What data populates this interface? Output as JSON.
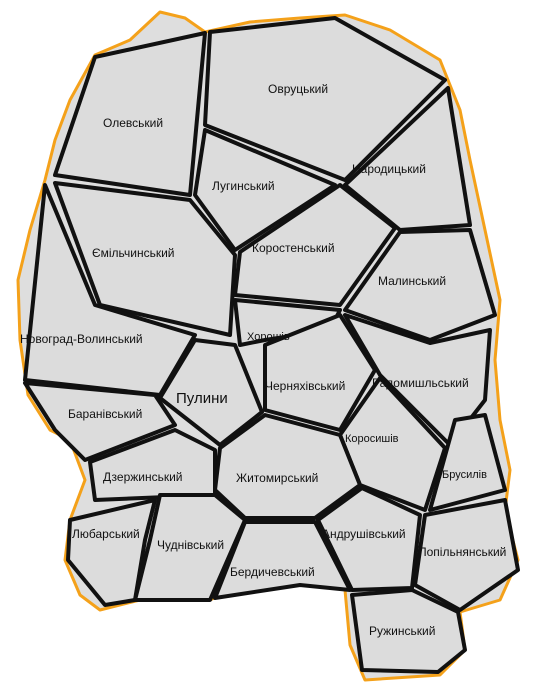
{
  "map": {
    "regions": [
      "Олевський",
      "Овруцький",
      "Лугинський",
      "Народицький",
      "Ємільчинський",
      "Коростенський",
      "Малинський",
      "Новоград-Волинський",
      "Хорошів",
      "Пулини",
      "Черняхівський",
      "Радомишльський",
      "Баранівський",
      "Коросишів",
      "Брусилів",
      "Дзержинський",
      "Житомирський",
      "Любарський",
      "Чуднівський",
      "Андрушівський",
      "Попільнянський",
      "Бердичевський",
      "Ружинський"
    ]
  },
  "colors": {
    "fill": "#dcdcdc",
    "border": "#111111",
    "oblast_outline": "#f4a11a"
  }
}
